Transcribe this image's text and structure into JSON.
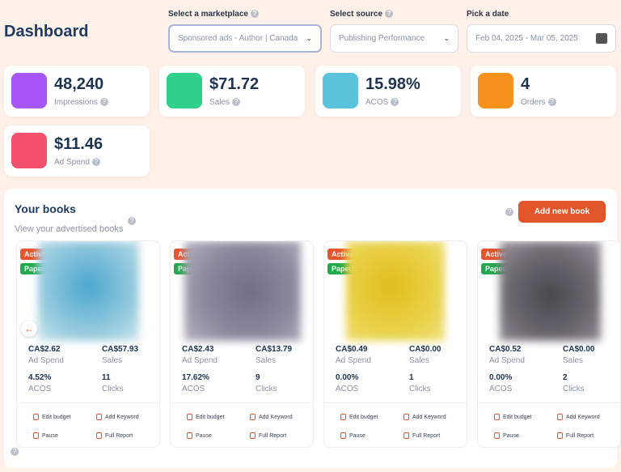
{
  "header": {
    "title": "Dashboard"
  },
  "filters": [
    {
      "label": "Select a marketplace",
      "value": "Sponsored ads - Author | Canada"
    },
    {
      "label": "Select source",
      "value": "Publishing Performance"
    },
    {
      "label": "Pick a date",
      "value": "Feb 04, 2025 - Mar 05, 2025"
    }
  ],
  "stats": [
    {
      "value": "48,240",
      "label": "Impressions"
    },
    {
      "value": "$71.72",
      "label": "Sales"
    },
    {
      "value": "15.98%",
      "label": "ACOS"
    },
    {
      "value": "4",
      "label": "Orders"
    },
    {
      "value": "$11.46",
      "label": "Ad Spend"
    }
  ],
  "books_section": {
    "title": "Your books",
    "subtitle": "View your advertised books",
    "add_button": "Add new book"
  },
  "metric_labels": {
    "ad_spend": "Ad Spend",
    "sales": "Sales",
    "acos": "ACOS",
    "clicks": "Clicks"
  },
  "badges": [
    "Active",
    "Paperback"
  ],
  "actions": [
    "Edit budget",
    "Add Keyword",
    "Pause",
    "Full Report"
  ],
  "books": [
    {
      "ad_spend": "CA$2.62",
      "sales": "CA$57.93",
      "acos": "4.52%",
      "clicks": "11"
    },
    {
      "ad_spend": "CA$2.43",
      "sales": "CA$13.79",
      "acos": "17.62%",
      "clicks": "9"
    },
    {
      "ad_spend": "CA$0.49",
      "sales": "CA$0.00",
      "acos": "0.00%",
      "clicks": "1"
    },
    {
      "ad_spend": "CA$0.52",
      "sales": "CA$0.00",
      "acos": "0.00%",
      "clicks": "2"
    }
  ]
}
